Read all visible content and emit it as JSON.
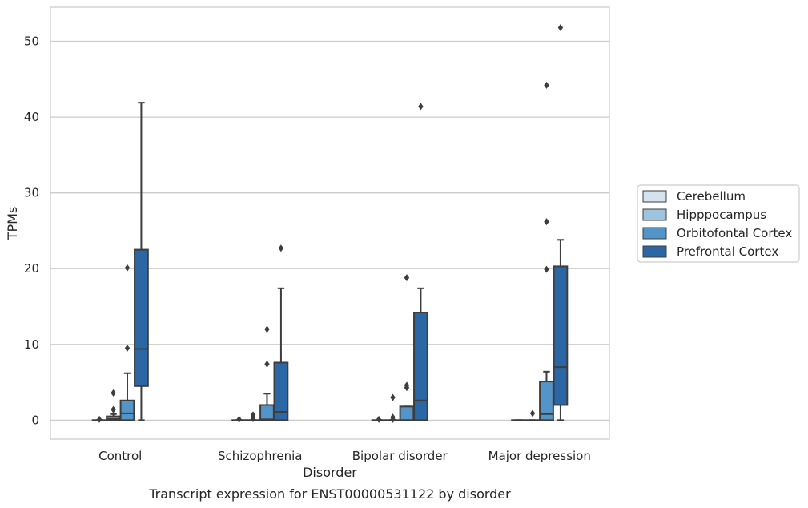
{
  "chart_data": {
    "type": "box",
    "title": "",
    "caption": "Transcript expression for ENST00000531122 by disorder",
    "xlabel": "Disorder",
    "ylabel": "TPMs",
    "ylim": [
      -2.5,
      54.5
    ],
    "yticks": [
      0,
      10,
      20,
      30,
      40,
      50
    ],
    "grid": "horizontal",
    "legend_placement": "right",
    "categories": [
      "Control",
      "Schizophrenia",
      "Bipolar disorder",
      "Major depression"
    ],
    "series": [
      {
        "name": "Cerebellum",
        "color": "#d4e3f0",
        "boxes": [
          {
            "whislo": 0,
            "q1": 0,
            "med": 0,
            "q3": 0,
            "whishi": 0,
            "fliers": [
              0.1
            ]
          },
          {
            "whislo": 0,
            "q1": 0,
            "med": 0,
            "q3": 0,
            "whishi": 0,
            "fliers": [
              0.1
            ]
          },
          {
            "whislo": 0,
            "q1": 0,
            "med": 0,
            "q3": 0,
            "whishi": 0,
            "fliers": [
              0.1
            ]
          },
          {
            "whislo": 0,
            "q1": 0,
            "med": 0,
            "q3": 0,
            "whishi": 0,
            "fliers": []
          }
        ]
      },
      {
        "name": "Hipppocampus",
        "color": "#9dc3df",
        "boxes": [
          {
            "whislo": 0,
            "q1": 0,
            "med": 0.2,
            "q3": 0.5,
            "whishi": 0.8,
            "fliers": [
              1.4,
              3.6
            ]
          },
          {
            "whislo": 0,
            "q1": 0,
            "med": 0,
            "q3": 0,
            "whishi": 0,
            "fliers": [
              0.2,
              0.4,
              0.7
            ]
          },
          {
            "whislo": 0,
            "q1": 0,
            "med": 0,
            "q3": 0,
            "whishi": 0,
            "fliers": [
              0.1,
              0.4,
              3.0
            ]
          },
          {
            "whislo": 0,
            "q1": 0,
            "med": 0,
            "q3": 0,
            "whishi": 0,
            "fliers": [
              0.9
            ]
          }
        ]
      },
      {
        "name": "Orbitofontal Cortex",
        "color": "#5395c8",
        "boxes": [
          {
            "whislo": 0,
            "q1": 0,
            "med": 0.9,
            "q3": 2.6,
            "whishi": 6.2,
            "fliers": [
              9.5,
              20.1
            ]
          },
          {
            "whislo": 0,
            "q1": 0,
            "med": 0.1,
            "q3": 2.0,
            "whishi": 3.5,
            "fliers": [
              7.4,
              12.0
            ]
          },
          {
            "whislo": 0,
            "q1": 0,
            "med": 0,
            "q3": 1.8,
            "whishi": 1.8,
            "fliers": [
              4.3,
              4.6,
              18.8
            ]
          },
          {
            "whislo": 0,
            "q1": 0,
            "med": 0.8,
            "q3": 5.1,
            "whishi": 6.4,
            "fliers": [
              19.9,
              26.2,
              44.2
            ]
          }
        ]
      },
      {
        "name": "Prefrontal Cortex",
        "color": "#2b67a5",
        "boxes": [
          {
            "whislo": 0,
            "q1": 4.5,
            "med": 9.4,
            "q3": 22.5,
            "whishi": 41.9,
            "fliers": []
          },
          {
            "whislo": 0,
            "q1": 0,
            "med": 1.1,
            "q3": 7.6,
            "whishi": 17.4,
            "fliers": [
              22.7
            ]
          },
          {
            "whislo": 0,
            "q1": 0,
            "med": 2.6,
            "q3": 14.2,
            "whishi": 17.4,
            "fliers": [
              41.4
            ]
          },
          {
            "whislo": 0,
            "q1": 2.0,
            "med": 7.0,
            "q3": 20.3,
            "whishi": 23.8,
            "fliers": [
              51.8
            ]
          }
        ]
      }
    ]
  }
}
